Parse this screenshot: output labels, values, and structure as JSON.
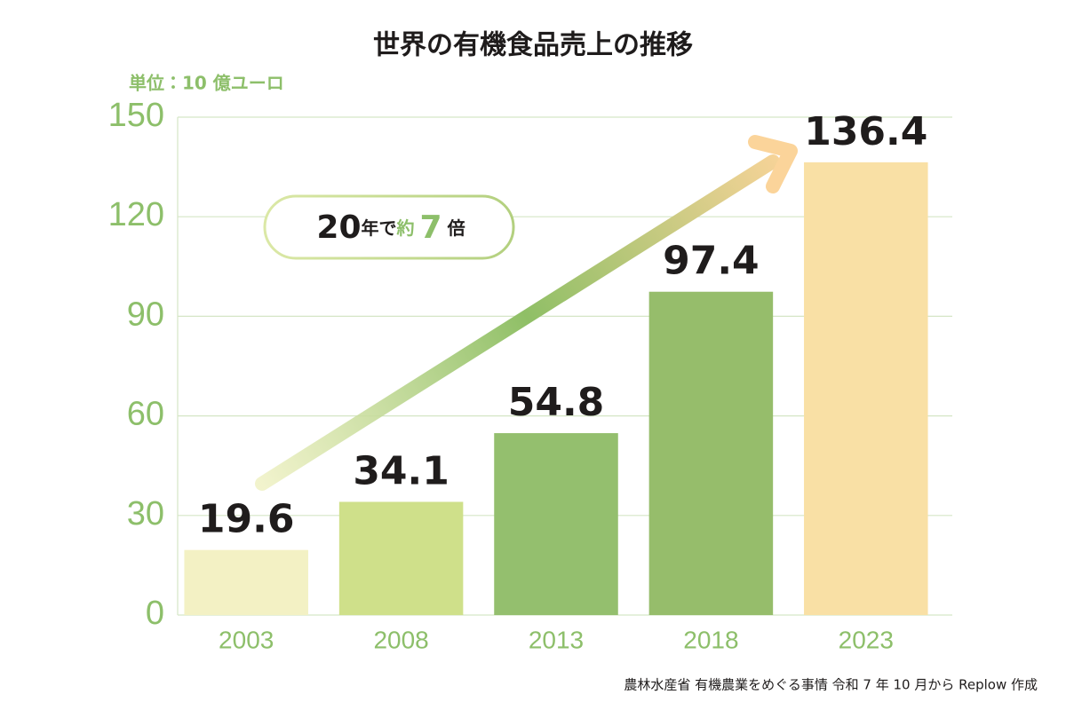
{
  "chart_data": {
    "type": "bar",
    "title": "世界の有機食品売上の推移",
    "unit_label": "単位：10 億ユーロ",
    "annotation": [
      "20",
      "年で",
      "約",
      "7",
      "倍"
    ],
    "source": "農林水産省 有機農業をめぐる事情 令和 7 年 10 月から Replow 作成",
    "categories": [
      "2003",
      "2008",
      "2013",
      "2018",
      "2023"
    ],
    "values": [
      19.6,
      34.1,
      54.8,
      97.4,
      136.4
    ],
    "colors": [
      "#f3f1c4",
      "#cfe08a",
      "#94bf6e",
      "#96bd6b",
      "#f9e0a5"
    ],
    "ylim": [
      0,
      150
    ],
    "yticks": [
      0,
      30,
      60,
      90,
      120,
      150
    ],
    "grid": true
  }
}
